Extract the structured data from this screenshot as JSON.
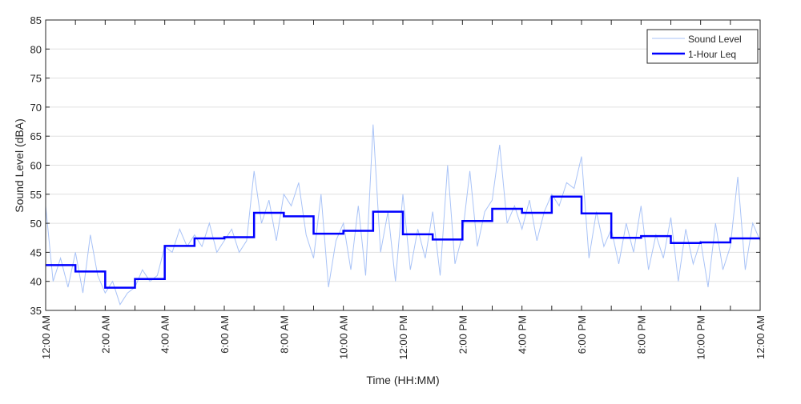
{
  "chart_data": {
    "type": "line",
    "title": "",
    "xlabel": "Time (HH:MM)",
    "ylabel": "Sound Level (dBA)",
    "xlim": [
      0,
      24
    ],
    "ylim": [
      35,
      85
    ],
    "grid": "horizontal",
    "legend_position": "top-right",
    "yticks": [
      35,
      40,
      45,
      50,
      55,
      60,
      65,
      70,
      75,
      80,
      85
    ],
    "xticks": [
      0,
      2,
      4,
      6,
      8,
      10,
      12,
      14,
      16,
      18,
      20,
      22,
      24
    ],
    "xtick_labels": [
      "12:00 AM",
      "2:00 AM",
      "4:00 AM",
      "6:00 AM",
      "8:00 AM",
      "10:00 AM",
      "12:00 PM",
      "2:00 PM",
      "4:00 PM",
      "6:00 PM",
      "8:00 PM",
      "10:00 PM",
      "12:00 AM"
    ],
    "colors": {
      "sound_level": "#a9c3f7",
      "leq": "#0000ff",
      "grid": "#e0e0e0",
      "axis": "#262626"
    },
    "series": [
      {
        "name": "Sound Level",
        "x_step_hours": 0.25,
        "values": [
          53,
          40,
          44,
          39,
          45,
          38,
          48,
          41,
          38,
          40,
          36,
          38,
          39,
          42,
          40,
          41,
          46,
          45,
          49,
          46,
          48,
          46,
          50,
          45,
          47,
          49,
          45,
          47,
          59,
          50,
          54,
          47,
          55,
          53,
          57,
          48,
          44,
          55,
          39,
          47,
          50,
          42,
          53,
          41,
          67,
          45,
          52,
          40,
          55,
          42,
          49,
          44,
          52,
          41,
          60,
          43,
          48,
          59,
          46,
          52,
          54,
          63.5,
          50,
          53,
          49,
          54,
          47,
          52,
          55,
          53,
          57,
          56,
          61.5,
          44,
          52,
          46,
          49,
          43,
          50,
          45,
          53,
          42,
          48,
          44,
          51,
          40,
          49,
          43,
          47,
          39,
          50,
          42,
          46,
          58,
          42,
          50,
          47
        ]
      },
      {
        "name": "1-Hour Leq",
        "step": "hourly",
        "values": [
          42.8,
          41.7,
          38.9,
          40.4,
          46.1,
          47.4,
          47.6,
          51.8,
          51.2,
          48.2,
          48.7,
          52.0,
          48.1,
          47.2,
          50.4,
          52.5,
          51.8,
          54.6,
          51.7,
          47.5,
          47.8,
          46.6,
          46.7,
          47.4
        ]
      }
    ]
  }
}
